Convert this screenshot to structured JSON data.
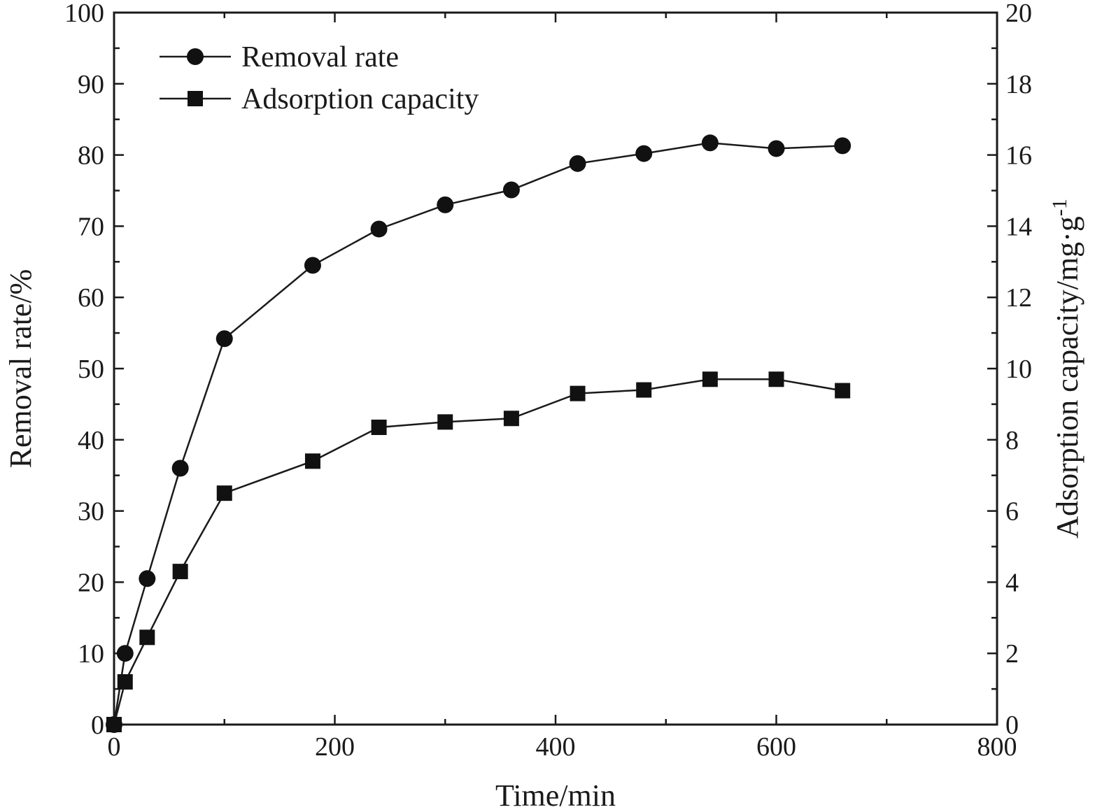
{
  "chart_data": {
    "type": "line",
    "xlabel": "Time/min",
    "ylabel_left": "Removal rate/%",
    "ylabel_right_base": "Adsorption capacity/mg·g",
    "ylabel_right_sup": "-1",
    "xlim": [
      0,
      800
    ],
    "ylim_left": [
      0,
      100
    ],
    "ylim_right": [
      0,
      20
    ],
    "x_ticks": [
      "0",
      "200",
      "400",
      "600",
      "800"
    ],
    "y_left_ticks": [
      "0",
      "10",
      "20",
      "30",
      "40",
      "50",
      "60",
      "70",
      "80",
      "90",
      "100"
    ],
    "y_right_ticks": [
      "0",
      "2",
      "4",
      "6",
      "8",
      "10",
      "12",
      "14",
      "16",
      "18",
      "20"
    ],
    "grid": false,
    "legend_position": "top-left",
    "series": [
      {
        "name": "Removal rate",
        "axis": "left",
        "marker": "circle",
        "x": [
          0,
          10,
          30,
          60,
          100,
          180,
          240,
          300,
          360,
          420,
          480,
          540,
          600,
          660
        ],
        "values": [
          0,
          10,
          20.5,
          36,
          54.2,
          64.5,
          69.6,
          73,
          75.1,
          78.8,
          80.2,
          81.7,
          80.9,
          81.3
        ]
      },
      {
        "name": "Adsorption capacity",
        "axis": "right",
        "marker": "square",
        "x": [
          0,
          10,
          30,
          60,
          100,
          180,
          240,
          300,
          360,
          420,
          480,
          540,
          600,
          660
        ],
        "values": [
          0,
          1.2,
          2.45,
          4.3,
          6.5,
          7.4,
          8.35,
          8.5,
          8.6,
          9.3,
          9.4,
          9.7,
          9.7,
          9.38
        ]
      }
    ]
  }
}
